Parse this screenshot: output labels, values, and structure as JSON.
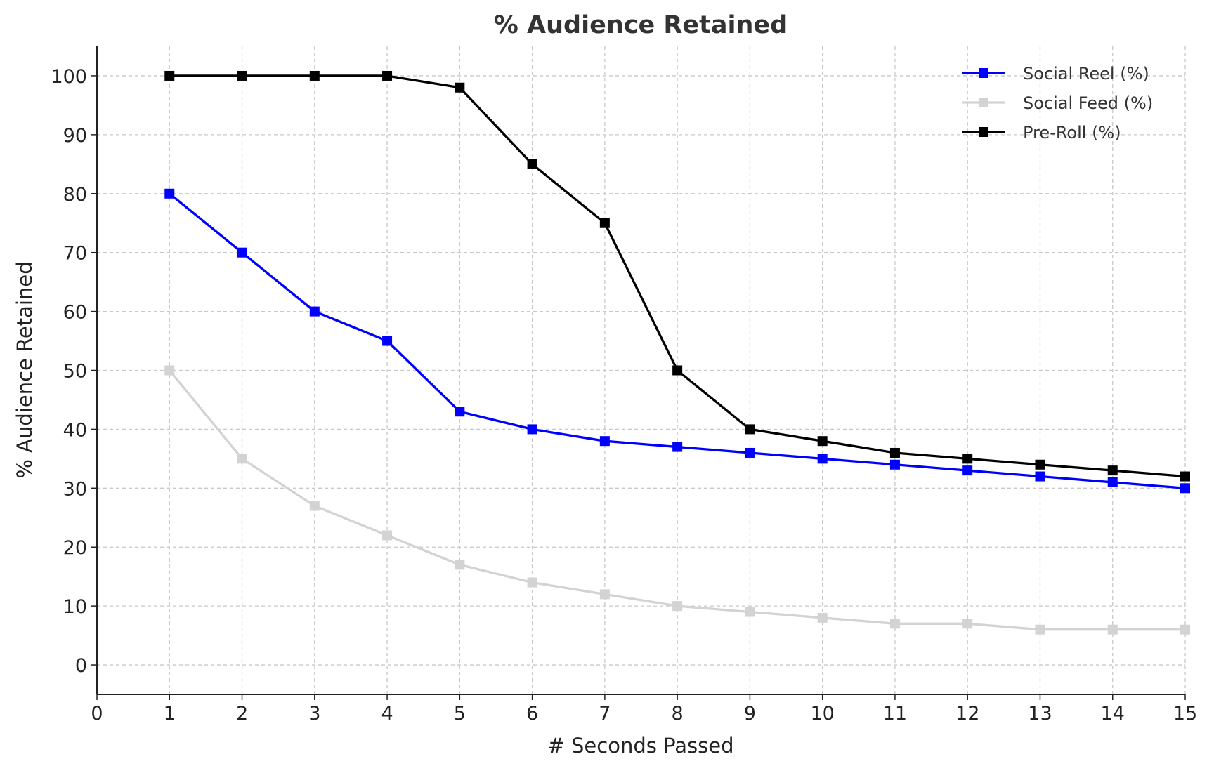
{
  "chart_data": {
    "type": "line",
    "title": "% Audience Retained",
    "xlabel": "# Seconds Passed",
    "ylabel": "% Audience Retained",
    "xlim": [
      0,
      15
    ],
    "ylim": [
      -5,
      105
    ],
    "xticks": [
      "0",
      "1",
      "2",
      "3",
      "4",
      "5",
      "6",
      "7",
      "8",
      "9",
      "10",
      "11",
      "12",
      "13",
      "14",
      "15"
    ],
    "yticks": [
      "0",
      "10",
      "20",
      "30",
      "40",
      "50",
      "60",
      "70",
      "80",
      "90",
      "100"
    ],
    "grid": true,
    "legend_position": "top-right",
    "x": [
      1,
      2,
      3,
      4,
      5,
      6,
      7,
      8,
      9,
      10,
      11,
      12,
      13,
      14,
      15
    ],
    "series": [
      {
        "name": "Social Reel (%)",
        "color": "#0000ff",
        "marker": "square",
        "values": [
          80,
          70,
          60,
          55,
          43,
          40,
          38,
          37,
          36,
          35,
          34,
          33,
          32,
          31,
          30
        ]
      },
      {
        "name": "Social Feed (%)",
        "color": "#d3d3d3",
        "marker": "square",
        "values": [
          50,
          35,
          27,
          22,
          17,
          14,
          12,
          10,
          9,
          8,
          7,
          7,
          6,
          6,
          6
        ]
      },
      {
        "name": "Pre-Roll (%)",
        "color": "#000000",
        "marker": "square",
        "values": [
          100,
          100,
          100,
          100,
          98,
          85,
          75,
          50,
          40,
          38,
          36,
          35,
          34,
          33,
          32
        ]
      }
    ]
  }
}
